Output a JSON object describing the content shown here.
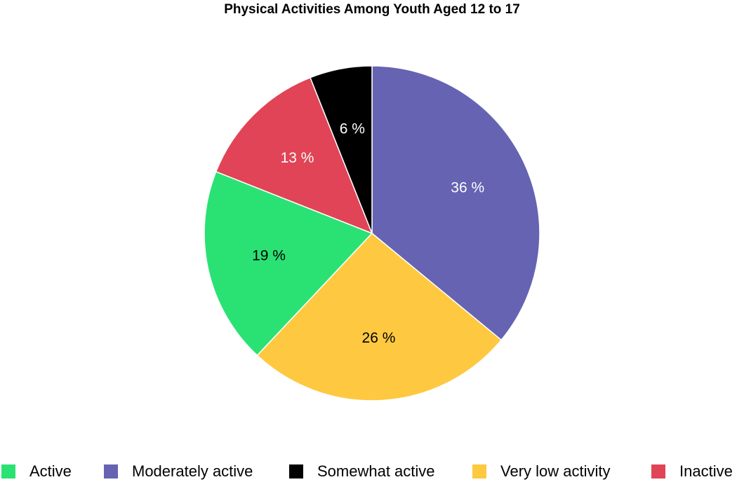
{
  "chart_data": {
    "type": "pie",
    "title": "Physical Activities Among Youth Aged 12 to 17",
    "categories": [
      "Active",
      "Moderately active",
      "Somewhat active",
      "Very low activity",
      "Inactive"
    ],
    "values": [
      19,
      36,
      6,
      26,
      13
    ],
    "value_labels": [
      "19 %",
      "36 %",
      "6 %",
      "26 %",
      "13 %"
    ],
    "colors": [
      "#2ae274",
      "#6563b2",
      "#000000",
      "#fec941",
      "#e04456"
    ],
    "legend": "bottom"
  }
}
